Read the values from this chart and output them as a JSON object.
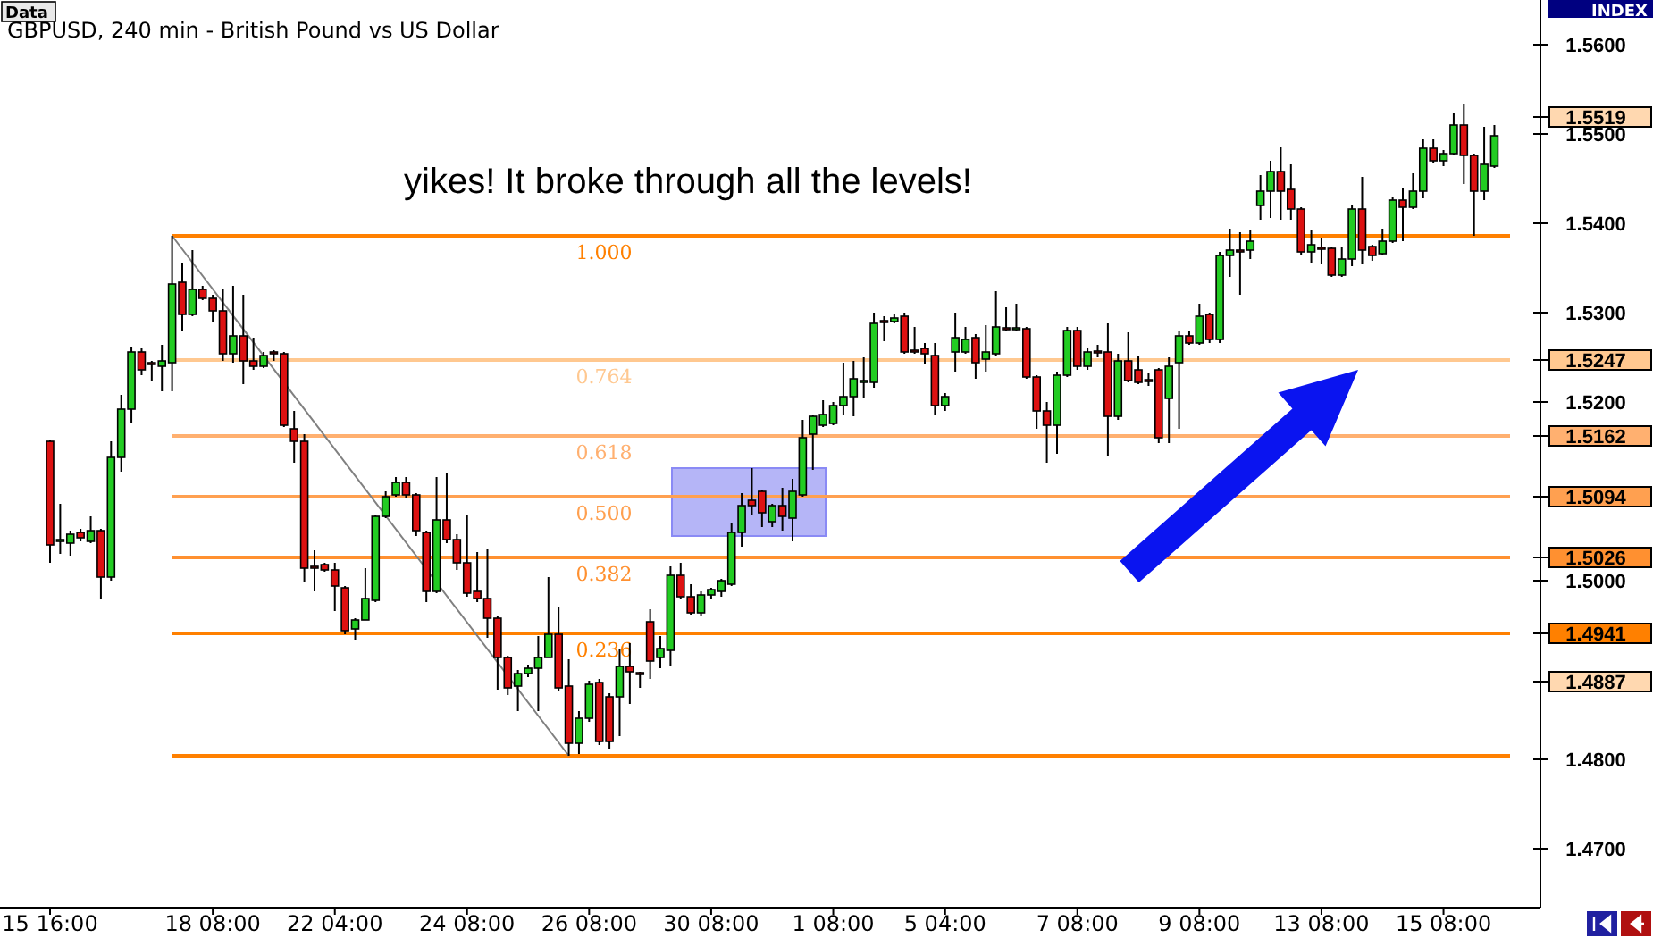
{
  "chart_data": {
    "type": "candlestick",
    "title": "GBPUSD, 240 min - British Pound vs US Dollar",
    "annotations": [
      "Data",
      "INDEX",
      "yikes! It broke through all the levels!",
      {
        "text": "1.000",
        "y": 1.5386
      },
      {
        "text": "0.764",
        "y": 1.5247
      },
      {
        "text": "0.618",
        "y": 1.5162
      },
      {
        "text": "0.500",
        "y": 1.5094
      },
      {
        "text": "0.382",
        "y": 1.5026
      },
      {
        "text": "0.236",
        "y": 1.4941
      }
    ],
    "categories": [
      "15 16:00",
      null,
      null,
      null,
      null,
      null,
      null,
      null,
      null,
      null,
      null,
      null,
      null,
      null,
      null,
      null,
      "18 08:00",
      null,
      null,
      null,
      null,
      null,
      null,
      null,
      null,
      null,
      null,
      null,
      "22 04:00",
      null,
      null,
      null,
      null,
      null,
      null,
      null,
      null,
      null,
      null,
      null,
      null,
      "24 08:00",
      null,
      null,
      null,
      null,
      null,
      null,
      null,
      null,
      null,
      null,
      null,
      "26 08:00",
      null,
      null,
      null,
      null,
      null,
      null,
      null,
      null,
      null,
      null,
      null,
      "30 08:00",
      null,
      null,
      null,
      null,
      null,
      null,
      null,
      null,
      null,
      null,
      null,
      "1 08:00",
      null,
      null,
      null,
      null,
      null,
      null,
      null,
      null,
      null,
      null,
      "5 04:00",
      null,
      null,
      null,
      null,
      null,
      null,
      null,
      null,
      null,
      null,
      null,
      null,
      "7 08:00",
      null,
      null,
      null,
      null,
      null,
      null,
      null,
      null,
      null,
      null,
      null,
      "9 08:00",
      null,
      null,
      null,
      null,
      null,
      null,
      null,
      null,
      null,
      null,
      null,
      "13 08:00",
      null,
      null,
      null,
      null,
      null,
      null,
      null,
      null,
      null,
      null,
      null,
      "15 08:00",
      null,
      null,
      null,
      null,
      null
    ],
    "ohlc": [
      [
        1.5156,
        1.5158,
        1.502,
        1.504
      ],
      [
        1.5044,
        1.5086,
        1.503,
        1.5046
      ],
      [
        1.5042,
        1.5056,
        1.5028,
        1.5052
      ],
      [
        1.5054,
        1.5058,
        1.5044,
        1.5048
      ],
      [
        1.5044,
        1.5072,
        1.5042,
        1.5056
      ],
      [
        1.5056,
        1.5058,
        1.498,
        1.5004
      ],
      [
        1.5004,
        1.5156,
        1.5,
        1.5138
      ],
      [
        1.5138,
        1.5208,
        1.5122,
        1.5192
      ],
      [
        1.5192,
        1.5262,
        1.5176,
        1.5256
      ],
      [
        1.5256,
        1.526,
        1.523,
        1.5236
      ],
      [
        1.5244,
        1.5246,
        1.5224,
        1.5242
      ],
      [
        1.524,
        1.5264,
        1.5212,
        1.5246
      ],
      [
        1.5244,
        1.5386,
        1.5212,
        1.5332
      ],
      [
        1.5334,
        1.5356,
        1.528,
        1.5298
      ],
      [
        1.5298,
        1.537,
        1.5296,
        1.5326
      ],
      [
        1.5326,
        1.533,
        1.5314,
        1.5316
      ],
      [
        1.5316,
        1.532,
        1.529,
        1.5302
      ],
      [
        1.5302,
        1.5326,
        1.5246,
        1.5254
      ],
      [
        1.5254,
        1.533,
        1.5244,
        1.5274
      ],
      [
        1.5274,
        1.532,
        1.522,
        1.5246
      ],
      [
        1.5246,
        1.5272,
        1.5236,
        1.524
      ],
      [
        1.524,
        1.5256,
        1.5238,
        1.5252
      ],
      [
        1.5256,
        1.5258,
        1.5246,
        1.5254
      ],
      [
        1.5254,
        1.5256,
        1.5172,
        1.5174
      ],
      [
        1.517,
        1.519,
        1.5132,
        1.5156
      ],
      [
        1.5156,
        1.5164,
        1.4998,
        1.5014
      ],
      [
        1.5016,
        1.5034,
        1.4988,
        1.5014
      ],
      [
        1.5018,
        1.502,
        1.501,
        1.5012
      ],
      [
        1.5012,
        1.502,
        1.4966,
        1.4994
      ],
      [
        1.4992,
        1.4994,
        1.494,
        1.4944
      ],
      [
        1.4946,
        1.4958,
        1.4934,
        1.4956
      ],
      [
        1.4956,
        1.5014,
        1.4956,
        1.498
      ],
      [
        1.4978,
        1.5074,
        1.4976,
        1.5072
      ],
      [
        1.5072,
        1.51,
        1.507,
        1.5094
      ],
      [
        1.5096,
        1.5116,
        1.5094,
        1.511
      ],
      [
        1.511,
        1.5116,
        1.5092,
        1.5096
      ],
      [
        1.5096,
        1.5098,
        1.505,
        1.5056
      ],
      [
        1.5054,
        1.5056,
        1.4976,
        1.4988
      ],
      [
        1.4988,
        1.5116,
        1.4986,
        1.5068
      ],
      [
        1.5068,
        1.512,
        1.5042,
        1.5046
      ],
      [
        1.5046,
        1.5052,
        1.5012,
        1.502
      ],
      [
        1.502,
        1.5074,
        1.4982,
        1.4986
      ],
      [
        1.4988,
        1.5032,
        1.4976,
        1.498
      ],
      [
        1.498,
        1.5036,
        1.4936,
        1.4958
      ],
      [
        1.4958,
        1.496,
        1.4878,
        1.4914
      ],
      [
        1.4914,
        1.4916,
        1.4872,
        1.488
      ],
      [
        1.4882,
        1.49,
        1.4854,
        1.4896
      ],
      [
        1.4896,
        1.4906,
        1.4892,
        1.4902
      ],
      [
        1.4902,
        1.4938,
        1.4854,
        1.4914
      ],
      [
        1.4914,
        1.5004,
        1.4914,
        1.494
      ],
      [
        1.494,
        1.497,
        1.4876,
        1.488
      ],
      [
        1.4882,
        1.4912,
        1.4804,
        1.4818
      ],
      [
        1.4818,
        1.4854,
        1.4806,
        1.4846
      ],
      [
        1.4846,
        1.4888,
        1.4842,
        1.4884
      ],
      [
        1.4886,
        1.489,
        1.4816,
        1.482
      ],
      [
        1.487,
        1.4874,
        1.4812,
        1.482
      ],
      [
        1.487,
        1.4924,
        1.4826,
        1.4904
      ],
      [
        1.4904,
        1.493,
        1.4862,
        1.4898
      ],
      [
        1.4897,
        1.4898,
        1.488,
        1.4895
      ],
      [
        1.4954,
        1.4968,
        1.489,
        1.491
      ],
      [
        1.4914,
        1.4938,
        1.4902,
        1.4924
      ],
      [
        1.4922,
        1.5016,
        1.4904,
        1.5006
      ],
      [
        1.5006,
        1.502,
        1.498,
        1.4982
      ],
      [
        1.4982,
        1.4996,
        1.4962,
        1.4964
      ],
      [
        1.4964,
        1.4988,
        1.496,
        1.4984
      ],
      [
        1.4984,
        1.4992,
        1.498,
        1.499
      ],
      [
        1.4988,
        1.5002,
        1.4982,
        1.5
      ],
      [
        1.4996,
        1.5064,
        1.4994,
        1.5054
      ],
      [
        1.5054,
        1.5098,
        1.5038,
        1.5084
      ],
      [
        1.509,
        1.5126,
        1.5074,
        1.5084
      ],
      [
        1.51,
        1.5102,
        1.506,
        1.5076
      ],
      [
        1.5066,
        1.5086,
        1.506,
        1.5084
      ],
      [
        1.5084,
        1.5104,
        1.5056,
        1.5072
      ],
      [
        1.507,
        1.5114,
        1.5044,
        1.51
      ],
      [
        1.5096,
        1.518,
        1.5094,
        1.516
      ],
      [
        1.5164,
        1.5186,
        1.5124,
        1.5184
      ],
      [
        1.5174,
        1.5202,
        1.5172,
        1.5186
      ],
      [
        1.5176,
        1.52,
        1.5174,
        1.5196
      ],
      [
        1.5196,
        1.5244,
        1.5186,
        1.5206
      ],
      [
        1.5206,
        1.5246,
        1.5184,
        1.5226
      ],
      [
        1.5222,
        1.525,
        1.5204,
        1.5224
      ],
      [
        1.5222,
        1.53,
        1.5216,
        1.5288
      ],
      [
        1.5291,
        1.5296,
        1.5268,
        1.5289
      ],
      [
        1.529,
        1.5298,
        1.5288,
        1.5294
      ],
      [
        1.5296,
        1.53,
        1.5254,
        1.5256
      ],
      [
        1.5258,
        1.5284,
        1.5254,
        1.5256
      ],
      [
        1.526,
        1.5266,
        1.5242,
        1.5254
      ],
      [
        1.5252,
        1.5266,
        1.5186,
        1.5196
      ],
      [
        1.5196,
        1.521,
        1.519,
        1.5206
      ],
      [
        1.5256,
        1.53,
        1.5234,
        1.5272
      ],
      [
        1.5256,
        1.5284,
        1.5254,
        1.527
      ],
      [
        1.5272,
        1.5276,
        1.5226,
        1.5244
      ],
      [
        1.5248,
        1.5286,
        1.5234,
        1.5256
      ],
      [
        1.5254,
        1.5324,
        1.5252,
        1.5284
      ],
      [
        1.5283,
        1.5306,
        1.528,
        1.5281
      ],
      [
        1.5281,
        1.531,
        1.528,
        1.5283
      ],
      [
        1.5282,
        1.5284,
        1.5226,
        1.5228
      ],
      [
        1.5228,
        1.523,
        1.517,
        1.519
      ],
      [
        1.519,
        1.52,
        1.5132,
        1.5174
      ],
      [
        1.5174,
        1.5234,
        1.5142,
        1.523
      ],
      [
        1.523,
        1.5284,
        1.5228,
        1.528
      ],
      [
        1.528,
        1.5284,
        1.5236,
        1.524
      ],
      [
        1.524,
        1.526,
        1.5236,
        1.5256
      ],
      [
        1.5257,
        1.5264,
        1.525,
        1.5255
      ],
      [
        1.5256,
        1.5288,
        1.514,
        1.5184
      ],
      [
        1.5184,
        1.5254,
        1.518,
        1.5246
      ],
      [
        1.5246,
        1.5278,
        1.5222,
        1.5224
      ],
      [
        1.5236,
        1.5252,
        1.522,
        1.5222
      ],
      [
        1.5225,
        1.5232,
        1.5218,
        1.5223
      ],
      [
        1.5236,
        1.5238,
        1.5154,
        1.516
      ],
      [
        1.5204,
        1.525,
        1.5154,
        1.524
      ],
      [
        1.5244,
        1.528,
        1.517,
        1.5274
      ],
      [
        1.5274,
        1.528,
        1.5264,
        1.5266
      ],
      [
        1.5266,
        1.531,
        1.5264,
        1.5296
      ],
      [
        1.5298,
        1.53,
        1.5266,
        1.527
      ],
      [
        1.527,
        1.5368,
        1.5266,
        1.5364
      ],
      [
        1.5364,
        1.5394,
        1.534,
        1.537
      ],
      [
        1.537,
        1.539,
        1.532,
        1.5368
      ],
      [
        1.537,
        1.5392,
        1.536,
        1.538
      ],
      [
        1.542,
        1.5454,
        1.5404,
        1.5436
      ],
      [
        1.5436,
        1.547,
        1.5406,
        1.5458
      ],
      [
        1.5458,
        1.5486,
        1.5404,
        1.5436
      ],
      [
        1.5438,
        1.5466,
        1.5404,
        1.5416
      ],
      [
        1.5416,
        1.5418,
        1.5364,
        1.5368
      ],
      [
        1.5368,
        1.5392,
        1.5356,
        1.5376
      ],
      [
        1.5373,
        1.5384,
        1.5354,
        1.5371
      ],
      [
        1.5372,
        1.5374,
        1.534,
        1.5342
      ],
      [
        1.5342,
        1.5374,
        1.534,
        1.536
      ],
      [
        1.536,
        1.542,
        1.5352,
        1.5416
      ],
      [
        1.5416,
        1.5452,
        1.5354,
        1.537
      ],
      [
        1.5374,
        1.5376,
        1.5358,
        1.5364
      ],
      [
        1.5366,
        1.5394,
        1.5364,
        1.538
      ],
      [
        1.538,
        1.543,
        1.5378,
        1.5426
      ],
      [
        1.5426,
        1.544,
        1.538,
        1.5418
      ],
      [
        1.5418,
        1.5456,
        1.5416,
        1.5436
      ],
      [
        1.5436,
        1.5494,
        1.5428,
        1.5484
      ],
      [
        1.5484,
        1.5494,
        1.5468,
        1.547
      ],
      [
        1.547,
        1.5482,
        1.5464,
        1.5478
      ],
      [
        1.5478,
        1.5524,
        1.5476,
        1.551
      ],
      [
        1.551,
        1.5534,
        1.5444,
        1.5476
      ],
      [
        1.5476,
        1.5478,
        1.5386,
        1.5436
      ],
      [
        1.5436,
        1.5508,
        1.5426,
        1.5466
      ],
      [
        1.5464,
        1.551,
        1.5462,
        1.5498
      ]
    ],
    "ylim": [
      1.4634,
      1.5646
    ],
    "yticks": [
      {
        "value": 1.47,
        "label": "1.4700"
      },
      {
        "value": 1.48,
        "label": "1.4800"
      },
      {
        "value": 1.4887,
        "label": "1.4887"
      },
      {
        "value": 1.4941,
        "label": "1.4941"
      },
      {
        "value": 1.5,
        "label": "1.5000"
      },
      {
        "value": 1.5026,
        "label": "1.5026"
      },
      {
        "value": 1.5094,
        "label": "1.5094"
      },
      {
        "value": 1.5162,
        "label": "1.5162"
      },
      {
        "value": 1.52,
        "label": "1.5200"
      },
      {
        "value": 1.5247,
        "label": "1.5247"
      },
      {
        "value": 1.53,
        "label": "1.5300"
      },
      {
        "value": 1.54,
        "label": "1.5400"
      },
      {
        "value": 1.55,
        "label": "1.5500"
      },
      {
        "value": 1.5519,
        "label": "1.5519"
      },
      {
        "value": 1.56,
        "label": "1.5600"
      }
    ],
    "ref_lines": [
      {
        "axis": "y",
        "value": 1.5386,
        "color": "#ff8000"
      },
      {
        "axis": "y",
        "value": 1.5247,
        "color": "#ffc890"
      },
      {
        "axis": "y",
        "value": 1.5162,
        "color": "#ffb070"
      },
      {
        "axis": "y",
        "value": 1.5094,
        "color": "#ffa050"
      },
      {
        "axis": "y",
        "value": 1.5026,
        "color": "#ff9030"
      },
      {
        "axis": "y",
        "value": 1.4941,
        "color": "#ff8000"
      },
      {
        "axis": "y",
        "value": 1.4804,
        "color": "#ff8000"
      }
    ]
  }
}
